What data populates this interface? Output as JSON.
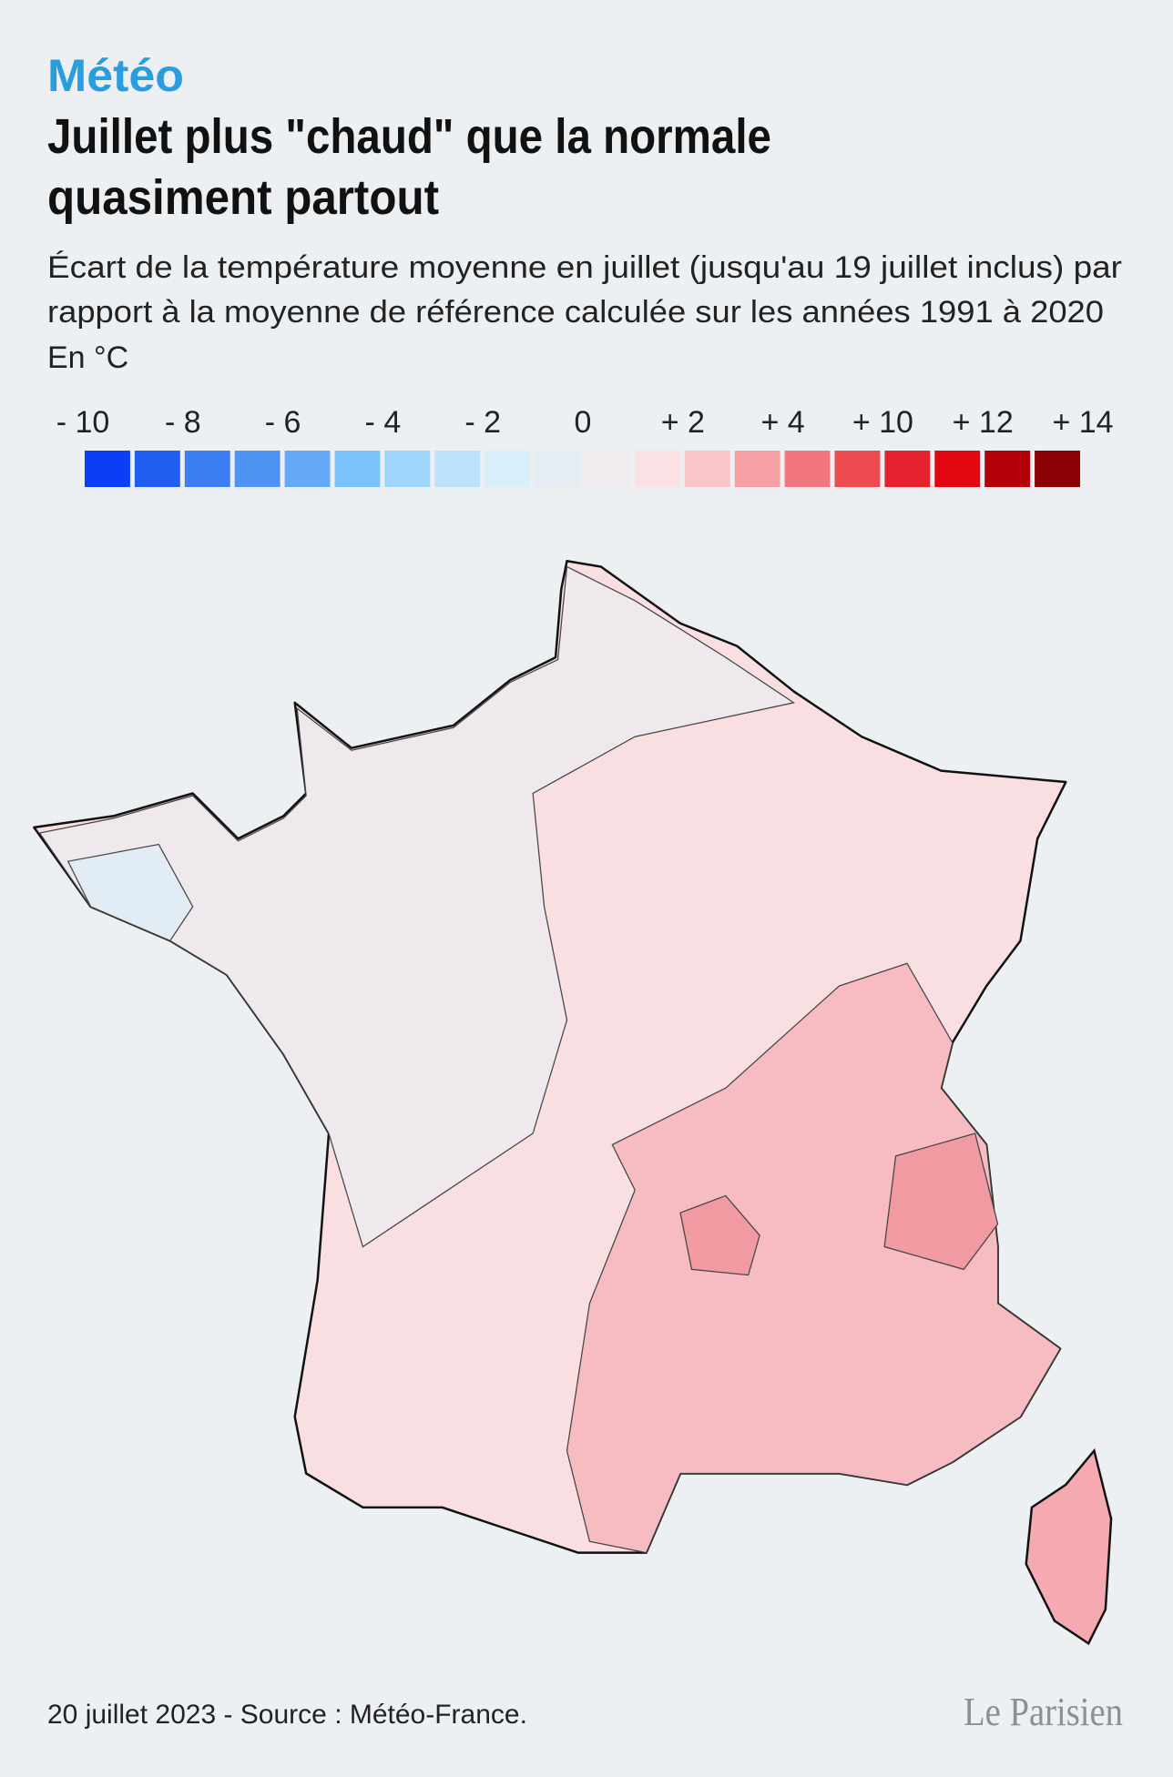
{
  "header": {
    "kicker": "Météo",
    "title": [
      "Juillet plus \"chaud\" que la normale",
      "quasiment partout"
    ],
    "subtitle": [
      "Écart de la température moyenne en juillet (jusqu'au 19 juillet inclus) par",
      "rapport à la moyenne de référence calculée sur les années 1991 à 2020"
    ],
    "unit": "En °C"
  },
  "legend": {
    "labels": [
      "- 10",
      "- 8",
      "- 6",
      "- 4",
      "- 2",
      "0",
      "+ 2",
      "+ 4",
      "+ 10",
      "+ 12",
      "+ 14"
    ],
    "colors": [
      "#0a3ff5",
      "#1f5ef0",
      "#3a7ef2",
      "#4f94f5",
      "#64aaf7",
      "#7dc3fb",
      "#9dd5fb",
      "#bde3fa",
      "#d8eef9",
      "#e6ecf3",
      "#f1eaee",
      "#fbe1e3",
      "#fbc4c7",
      "#f7a1a6",
      "#f1767d",
      "#ec4b52",
      "#e5232e",
      "#e00711",
      "#b3000a",
      "#8b0005"
    ]
  },
  "footer": {
    "source": "20 juillet 2023 - Source : Météo-France.",
    "logo": "Le Parisien"
  }
}
